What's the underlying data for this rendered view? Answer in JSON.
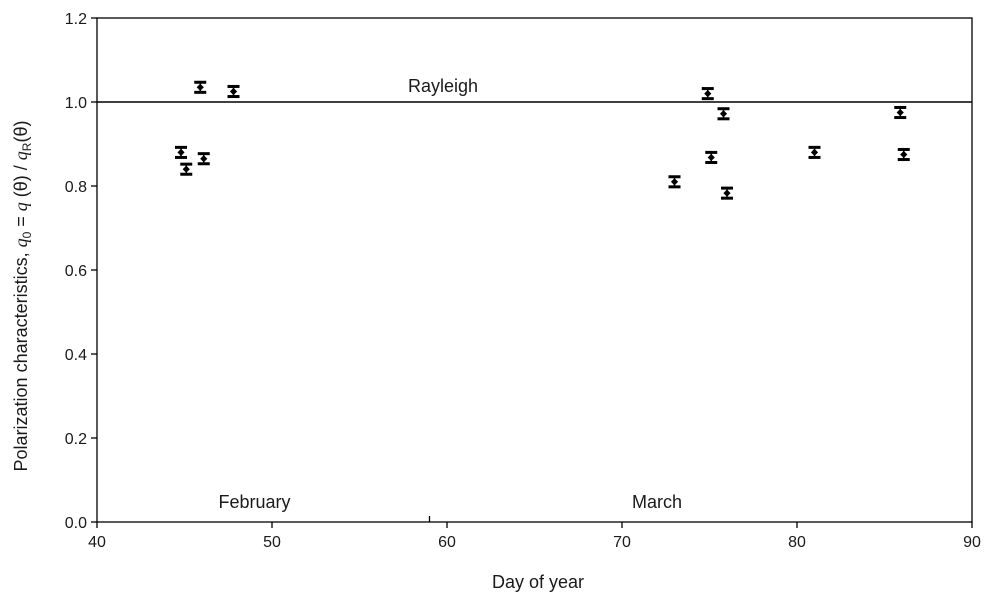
{
  "chart_data": {
    "type": "scatter",
    "xlabel": "Day of year",
    "ylabel": {
      "prefix": "Polarization characteristics, ",
      "q": "q",
      "zero": "0",
      "eq": " = ",
      "theta_expr": " (θ) / ",
      "R": "R",
      "theta_end": "(θ)"
    },
    "xlim": [
      40,
      90
    ],
    "ylim": [
      0,
      1.2
    ],
    "xticks": [
      "40",
      "50",
      "60",
      "70",
      "80",
      "90"
    ],
    "yticks": [
      "0.0",
      "0.2",
      "0.4",
      "0.6",
      "0.8",
      "1.0",
      "1.2"
    ],
    "reference_line": {
      "y": 1.0,
      "label": "Rayleigh"
    },
    "month_labels": [
      {
        "text": "February",
        "x": 49
      },
      {
        "text": "March",
        "x": 72
      }
    ],
    "month_divider_x": 59,
    "points": [
      {
        "x": 44.8,
        "y": 0.88,
        "err": 0.012
      },
      {
        "x": 45.1,
        "y": 0.84,
        "err": 0.012
      },
      {
        "x": 45.9,
        "y": 1.035,
        "err": 0.012
      },
      {
        "x": 46.1,
        "y": 0.865,
        "err": 0.012
      },
      {
        "x": 47.8,
        "y": 1.025,
        "err": 0.012
      },
      {
        "x": 73.0,
        "y": 0.81,
        "err": 0.012
      },
      {
        "x": 74.9,
        "y": 1.02,
        "err": 0.012
      },
      {
        "x": 75.1,
        "y": 0.868,
        "err": 0.012
      },
      {
        "x": 75.8,
        "y": 0.972,
        "err": 0.012
      },
      {
        "x": 76.0,
        "y": 0.783,
        "err": 0.012
      },
      {
        "x": 81.0,
        "y": 0.88,
        "err": 0.012
      },
      {
        "x": 85.9,
        "y": 0.975,
        "err": 0.012
      },
      {
        "x": 86.1,
        "y": 0.875,
        "err": 0.012
      }
    ],
    "colors": {
      "marker": "#000000",
      "axes": "#000000"
    },
    "grid": false
  }
}
